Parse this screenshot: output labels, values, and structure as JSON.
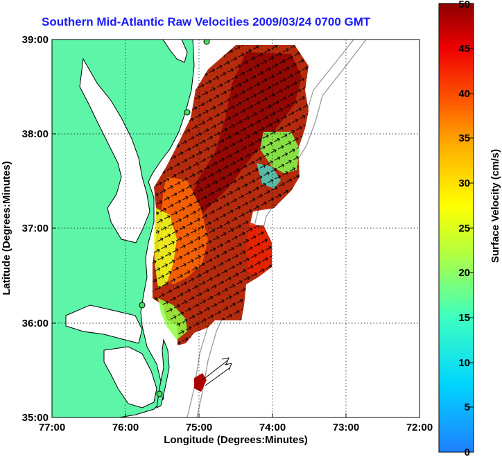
{
  "title": "Southern Mid-Atlantic Raw Velocities 2009/03/24 0700 GMT",
  "map": {
    "xlabel": "Longitude (Degrees:Minutes)",
    "ylabel": "Latitude (Degrees:Minutes)",
    "lon_ticks": [
      "77:00",
      "76:00",
      "75:00",
      "74:00",
      "73:00",
      "72:00"
    ],
    "lat_ticks": [
      "39:00",
      "38:00",
      "37:00",
      "36:00",
      "35:00"
    ],
    "lon_range": [
      -77,
      -72
    ],
    "lat_range": [
      35,
      39
    ],
    "grid": true,
    "land_color": "#5df5a8",
    "water_color": "#ffffff"
  },
  "colorbar": {
    "label": "Surface Velocity (cm/s)",
    "ticks": [
      "50",
      "45",
      "40",
      "35",
      "30",
      "25",
      "20",
      "15",
      "10",
      "5",
      "0"
    ],
    "range": [
      0,
      50
    ],
    "colors": [
      "#1f7fff",
      "#00d4ff",
      "#3dffc0",
      "#b8ff3a",
      "#ffff00",
      "#ffb000",
      "#ff5a00",
      "#ee0000",
      "#8b0000"
    ]
  }
}
